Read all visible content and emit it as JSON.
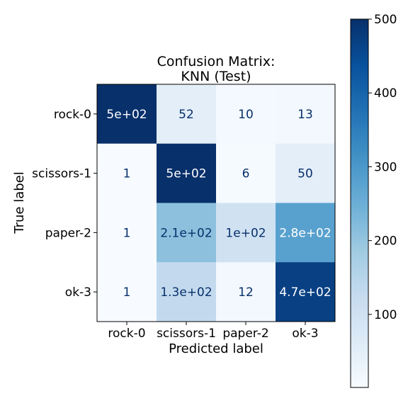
{
  "chart_data": {
    "type": "heatmap",
    "title_lines": [
      "Confusion Matrix:",
      "KNN (Test)"
    ],
    "xlabel": "Predicted label",
    "ylabel": "True label",
    "x_categories": [
      "rock-0",
      "scissors-1",
      "paper-2",
      "ok-3"
    ],
    "y_categories": [
      "rock-0",
      "scissors-1",
      "paper-2",
      "ok-3"
    ],
    "values": [
      [
        500,
        52,
        10,
        13
      ],
      [
        1,
        500,
        6,
        50
      ],
      [
        1,
        210,
        100,
        280
      ],
      [
        1,
        130,
        12,
        470
      ]
    ],
    "cell_labels": [
      [
        "5e+02",
        "52",
        "10",
        "13"
      ],
      [
        "1",
        "5e+02",
        "6",
        "50"
      ],
      [
        "1",
        "2.1e+02",
        "1e+02",
        "2.8e+02"
      ],
      [
        "1",
        "1.3e+02",
        "12",
        "4.7e+02"
      ]
    ],
    "colormap": "Blues",
    "vmin": 1,
    "vmax": 500,
    "colorbar_ticks": [
      100,
      200,
      300,
      400,
      500
    ],
    "colors": {
      "cmap_low": "#f7fbff",
      "cmap_high": "#08306b",
      "text_dark": "#08306b",
      "text_light": "#ffffff"
    }
  }
}
